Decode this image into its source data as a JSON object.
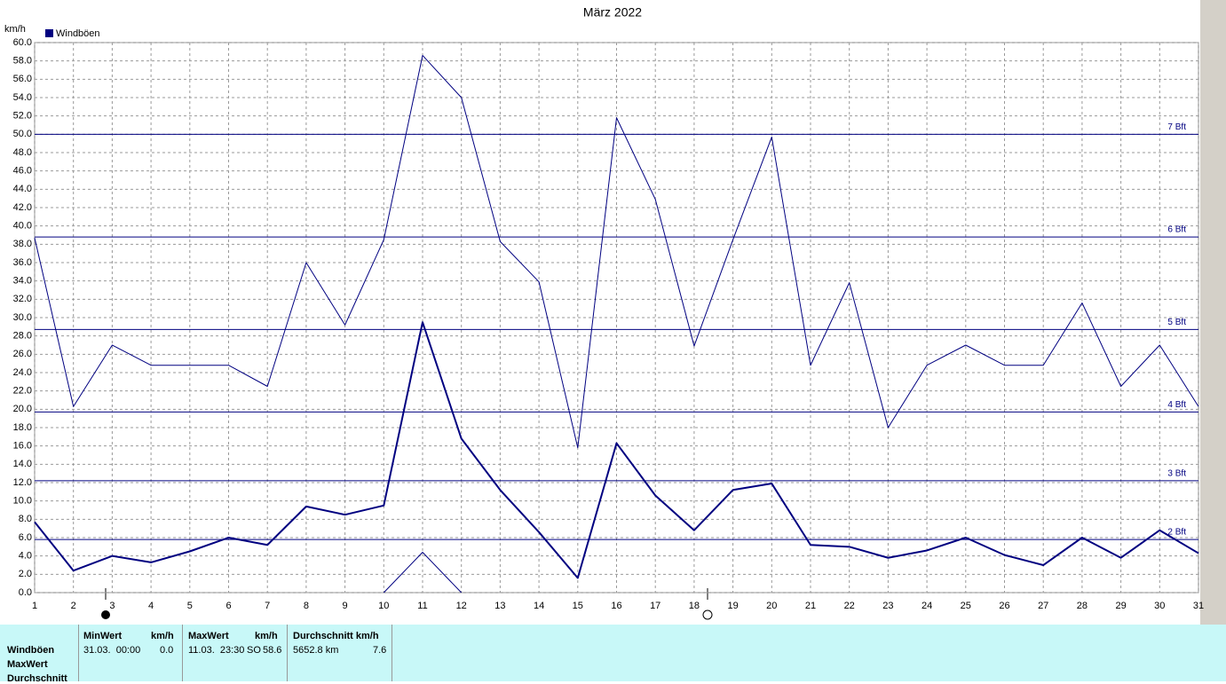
{
  "chart_data": {
    "type": "line",
    "title": "März 2022",
    "ylabel": "km/h",
    "legend": "Windböen",
    "x": [
      1,
      2,
      3,
      4,
      5,
      6,
      7,
      8,
      9,
      10,
      11,
      12,
      13,
      14,
      15,
      16,
      17,
      18,
      19,
      20,
      21,
      22,
      23,
      24,
      25,
      26,
      27,
      28,
      29,
      30,
      31
    ],
    "xlim": [
      1,
      31
    ],
    "xticks": [
      1,
      2,
      3,
      4,
      5,
      6,
      7,
      8,
      9,
      10,
      11,
      12,
      13,
      14,
      15,
      16,
      17,
      18,
      19,
      20,
      21,
      22,
      23,
      24,
      25,
      26,
      27,
      28,
      29,
      30,
      31
    ],
    "ylim": [
      0,
      60
    ],
    "yticks": [
      {
        "value": 0,
        "label": "0.0"
      },
      {
        "value": 2,
        "label": "2.0"
      },
      {
        "value": 4,
        "label": "4.0"
      },
      {
        "value": 6,
        "label": "6.0"
      },
      {
        "value": 8,
        "label": "8.0"
      },
      {
        "value": 10,
        "label": "10.0"
      },
      {
        "value": 12,
        "label": "12.0"
      },
      {
        "value": 14,
        "label": "14.0"
      },
      {
        "value": 16,
        "label": "16.0"
      },
      {
        "value": 18,
        "label": "18.0"
      },
      {
        "value": 20,
        "label": "20.0"
      },
      {
        "value": 22,
        "label": "22.0"
      },
      {
        "value": 24,
        "label": "24.0"
      },
      {
        "value": 26,
        "label": "26.0"
      },
      {
        "value": 28,
        "label": "28.0"
      },
      {
        "value": 30,
        "label": "30.0"
      },
      {
        "value": 32,
        "label": "32.0"
      },
      {
        "value": 34,
        "label": "34.0"
      },
      {
        "value": 36,
        "label": "36.0"
      },
      {
        "value": 38,
        "label": "38.0"
      },
      {
        "value": 40,
        "label": "40.0"
      },
      {
        "value": 42,
        "label": "42.0"
      },
      {
        "value": 44,
        "label": "44.0"
      },
      {
        "value": 46,
        "label": "46.0"
      },
      {
        "value": 48,
        "label": "48.0"
      },
      {
        "value": 50,
        "label": "50.0"
      },
      {
        "value": 52,
        "label": "52.0"
      },
      {
        "value": 54,
        "label": "54.0"
      },
      {
        "value": 56,
        "label": "56.0"
      },
      {
        "value": 58,
        "label": "58.0"
      },
      {
        "value": 60,
        "label": "60.0"
      }
    ],
    "grid": true,
    "series": [
      {
        "name": "Windböen",
        "color": "#000080",
        "width": 1,
        "values": [
          38.7,
          20.3,
          27.0,
          24.8,
          24.8,
          24.8,
          22.5,
          36.0,
          29.2,
          38.5,
          58.6,
          54.0,
          38.3,
          33.9,
          15.8,
          51.8,
          42.9,
          26.9,
          38.5,
          49.7,
          24.8,
          33.8,
          18.0,
          24.8,
          27.0,
          24.8,
          24.8,
          31.6,
          22.5,
          27.0,
          20.3
        ]
      },
      {
        "color": "#000080",
        "width": 2,
        "values": [
          7.7,
          2.4,
          4.0,
          3.3,
          4.5,
          6.0,
          5.2,
          9.4,
          8.5,
          9.5,
          29.5,
          16.8,
          11.2,
          6.6,
          1.6,
          16.3,
          10.6,
          6.8,
          11.2,
          11.9,
          5.2,
          5.0,
          3.8,
          4.6,
          6.0,
          4.1,
          3.0,
          6.0,
          3.8,
          6.8,
          4.3
        ]
      },
      {
        "color": "#000080",
        "width": 1,
        "values": [
          null,
          null,
          null,
          null,
          null,
          null,
          null,
          null,
          null,
          0,
          4.4,
          0,
          null,
          null,
          null,
          null,
          null,
          null,
          null,
          null,
          null,
          null,
          null,
          null,
          null,
          null,
          null,
          null,
          null,
          null,
          null
        ]
      }
    ],
    "reference_lines": [
      {
        "value": 50.0,
        "label": "7 Bft"
      },
      {
        "value": 38.8,
        "label": "6 Bft"
      },
      {
        "value": 28.7,
        "label": "5 Bft"
      },
      {
        "value": 19.7,
        "label": "4 Bft"
      },
      {
        "value": 12.2,
        "label": "3 Bft"
      },
      {
        "value": 5.8,
        "label": "2 Bft"
      }
    ]
  },
  "stats_table": {
    "row_labels": [
      "Windböen",
      "MaxWert",
      "Durchschnitt"
    ],
    "columns": [
      {
        "header": "MinWert",
        "unit": "km/h",
        "date": "31.03.  00:00",
        "value": "0.0"
      },
      {
        "header": "MaxWert",
        "unit": "km/h",
        "date": "11.03.  23:30",
        "direction": "SO",
        "value": "58.6"
      },
      {
        "header": "Durchschnitt km/h",
        "distance": "5652.8 km",
        "value": "7.6"
      }
    ]
  }
}
